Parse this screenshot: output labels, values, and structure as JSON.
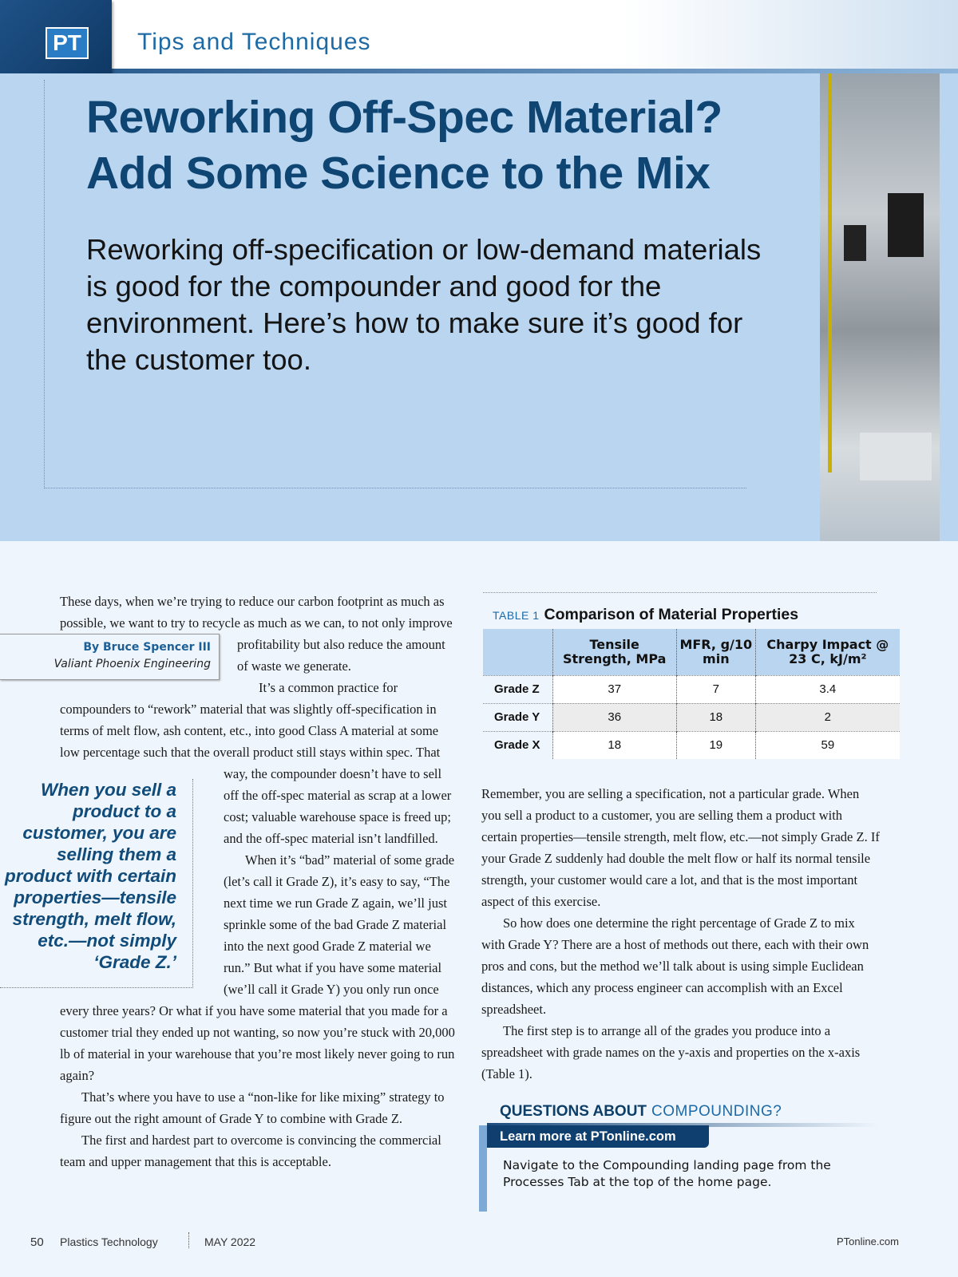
{
  "header": {
    "badge": "PT",
    "section": "Tips and Techniques"
  },
  "hero": {
    "title_lines": [
      "Reworking Off-Spec Material?",
      "Add Some Science to the Mix"
    ],
    "dek": "Reworking off-specification or low-demand materials is good for the compounder and good for the environment. Here’s how to make sure it’s good for the customer too."
  },
  "byline": {
    "author": "By Bruce Spencer III",
    "affiliation": "Valiant Phoenix Engineering"
  },
  "pullquote": "When you sell a product to a customer, you are selling them a product with certain properties—tensile strength, melt flow, etc.—not simply ‘Grade Z.’",
  "left_column": [
    "These days, when we’re trying to reduce our carbon footprint as much as possible, we want to try to recycle as much as we can, to not only improve profitability but also reduce the amount of waste we generate.",
    "It’s a common practice for compounders to “rework” material that was slightly off-specification in terms of melt flow, ash content, etc., into good Class A material at some low percentage such that the overall product still stays within spec. That way, the compounder doesn’t have to sell off the off-spec material as scrap at a lower cost; valuable warehouse space is freed up; and the off-spec material isn’t landfilled.",
    "When it’s “bad” material of some grade (let’s call it Grade Z), it’s easy to say, “The next time we run Grade Z again, we’ll just sprinkle some of the bad Grade Z material into the next good Grade Z material we run.” But what if you have some material (we’ll call it Grade Y) you only run once every three years? Or what if you have some material that you made for a customer trial they ended up not wanting, so now you’re stuck with 20,000 lb of material in your warehouse that you’re most likely never going to run again?",
    "That’s where you have to use a “non-like for like mixing” strategy to figure out the right amount of Grade Y to combine with Grade Z.",
    "The first and hardest part to overcome is convincing the commercial team and upper management that this is acceptable."
  ],
  "table": {
    "label": "TABLE 1",
    "title": "Comparison of Material Properties",
    "headers": [
      "Tensile Strength, MPa",
      "MFR, g/10 min",
      "Charpy Impact @ 23 C, kJ/m²"
    ],
    "rows": [
      {
        "grade": "Grade Z",
        "values": [
          37,
          7,
          3.4
        ]
      },
      {
        "grade": "Grade Y",
        "values": [
          36,
          18,
          2
        ]
      },
      {
        "grade": "Grade X",
        "values": [
          18,
          19,
          59
        ]
      }
    ]
  },
  "right_column": [
    "Remember, you are selling a specification, not a particular grade. When you sell a product to a customer, you are selling them a product with certain properties—tensile strength, melt flow, etc.—not simply Grade Z. If your Grade Z suddenly had double the melt flow or half its normal tensile strength, your customer would care a lot, and that is the most important aspect of this exercise.",
    "So how does one determine the right percentage of Grade Z to mix with Grade Y? There are a host of methods out there, each with their own pros and cons, but the method we’ll talk about is using simple Euclidean distances, which any process engineer can accomplish with an Excel spreadsheet.",
    "The first step is to arrange all of the grades you produce into a spreadsheet with grade names on the y-axis and properties on the x-axis (Table 1)."
  ],
  "callout": {
    "heading_bold": "QUESTIONS ABOUT",
    "heading_topic": "COMPOUNDING?",
    "button": "Learn more at PTonline.com",
    "text": "Navigate to the Compounding landing page from the Processes Tab at the top of the home page."
  },
  "footer": {
    "page": "50",
    "magazine": "Plastics Technology",
    "date": "MAY 2022",
    "url": "PTonline.com"
  }
}
